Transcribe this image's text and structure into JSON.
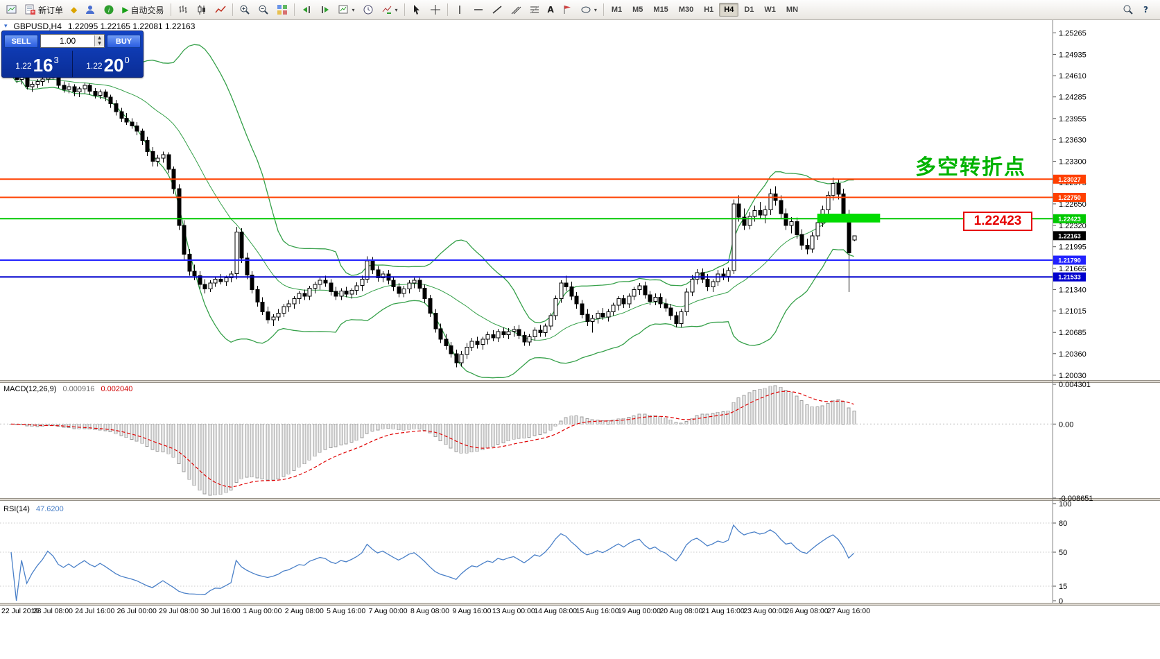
{
  "toolbar": {
    "new_order": "新订单",
    "autotrading": "自动交易",
    "timeframes": [
      "M1",
      "M5",
      "M15",
      "M30",
      "H1",
      "H4",
      "D1",
      "W1",
      "MN"
    ],
    "active_timeframe": "H4",
    "help_label": "?"
  },
  "chart_header": {
    "symbol": "GBPUSD,H4",
    "ohlc": "1.22095 1.22165 1.22081 1.22163"
  },
  "trade_panel": {
    "sell_label": "SELL",
    "buy_label": "BUY",
    "volume": "1.00",
    "sell_price": {
      "big": "1.22",
      "pips": "16",
      "sup": "3"
    },
    "buy_price": {
      "big": "1.22",
      "pips": "20",
      "sup": "0"
    }
  },
  "annotations": {
    "turning_point": "多空转折点",
    "turning_point_color": "#00b300",
    "price_box": "1.22423",
    "price_box_color": "#e60000"
  },
  "chart_data": {
    "type": "candlestick",
    "symbol": "GBPUSD",
    "timeframe": "H4",
    "price_axis": {
      "min": 1.19955,
      "max": 1.2547,
      "ticks": [
        "1.25265",
        "1.24935",
        "1.24610",
        "1.24285",
        "1.23955",
        "1.23630",
        "1.23300",
        "1.22975",
        "1.22650",
        "1.22320",
        "1.21995",
        "1.21665",
        "1.21340",
        "1.21015",
        "1.20685",
        "1.20360",
        "1.20030"
      ]
    },
    "time_labels": [
      {
        "i": 0,
        "label": "22 Jul 2019"
      },
      {
        "i": 8,
        "label": "23 Jul 08:00"
      },
      {
        "i": 16,
        "label": "24 Jul 16:00"
      },
      {
        "i": 24,
        "label": "26 Jul 00:00"
      },
      {
        "i": 32,
        "label": "29 Jul 08:00"
      },
      {
        "i": 40,
        "label": "30 Jul 16:00"
      },
      {
        "i": 48,
        "label": "1 Aug 00:00"
      },
      {
        "i": 56,
        "label": "2 Aug 08:00"
      },
      {
        "i": 64,
        "label": "5 Aug 16:00"
      },
      {
        "i": 72,
        "label": "7 Aug 00:00"
      },
      {
        "i": 80,
        "label": "8 Aug 08:00"
      },
      {
        "i": 88,
        "label": "9 Aug 16:00"
      },
      {
        "i": 96,
        "label": "13 Aug 00:00"
      },
      {
        "i": 104,
        "label": "14 Aug 08:00"
      },
      {
        "i": 112,
        "label": "15 Aug 16:00"
      },
      {
        "i": 120,
        "label": "19 Aug 00:00"
      },
      {
        "i": 128,
        "label": "20 Aug 08:00"
      },
      {
        "i": 136,
        "label": "21 Aug 16:00"
      },
      {
        "i": 144,
        "label": "23 Aug 00:00"
      },
      {
        "i": 152,
        "label": "26 Aug 08:00"
      },
      {
        "i": 160,
        "label": "27 Aug 16:00"
      }
    ],
    "candles": [
      [
        1.2468,
        1.2478,
        1.2458,
        1.2462
      ],
      [
        1.2462,
        1.2468,
        1.245,
        1.2455
      ],
      [
        1.2455,
        1.2465,
        1.2448,
        1.246
      ],
      [
        1.246,
        1.2463,
        1.244,
        1.2444
      ],
      [
        1.2444,
        1.2452,
        1.2436,
        1.2448
      ],
      [
        1.2448,
        1.2456,
        1.2442,
        1.2452
      ],
      [
        1.2452,
        1.246,
        1.2445,
        1.2456
      ],
      [
        1.2456,
        1.2466,
        1.245,
        1.2463
      ],
      [
        1.2463,
        1.2473,
        1.2455,
        1.2458
      ],
      [
        1.2458,
        1.2462,
        1.2442,
        1.2446
      ],
      [
        1.2446,
        1.2452,
        1.2435,
        1.244
      ],
      [
        1.244,
        1.245,
        1.2434,
        1.2444
      ],
      [
        1.2444,
        1.2448,
        1.243,
        1.2436
      ],
      [
        1.2436,
        1.2444,
        1.2428,
        1.2441
      ],
      [
        1.2441,
        1.245,
        1.2434,
        1.2446
      ],
      [
        1.2446,
        1.2449,
        1.2432,
        1.2437
      ],
      [
        1.2437,
        1.2442,
        1.2426,
        1.2431
      ],
      [
        1.2431,
        1.244,
        1.2425,
        1.2436
      ],
      [
        1.2436,
        1.244,
        1.2422,
        1.2428
      ],
      [
        1.2428,
        1.2432,
        1.2412,
        1.2418
      ],
      [
        1.2418,
        1.2424,
        1.24,
        1.2406
      ],
      [
        1.2406,
        1.2412,
        1.239,
        1.2396
      ],
      [
        1.2396,
        1.2404,
        1.2386,
        1.239
      ],
      [
        1.239,
        1.2396,
        1.238,
        1.2384
      ],
      [
        1.2384,
        1.239,
        1.237,
        1.2376
      ],
      [
        1.2376,
        1.238,
        1.2355,
        1.2362
      ],
      [
        1.2362,
        1.2368,
        1.2338,
        1.2345
      ],
      [
        1.2345,
        1.2352,
        1.2322,
        1.233
      ],
      [
        1.233,
        1.234,
        1.2322,
        1.2335
      ],
      [
        1.2335,
        1.2345,
        1.2328,
        1.234
      ],
      [
        1.234,
        1.2344,
        1.2312,
        1.2318
      ],
      [
        1.2318,
        1.2322,
        1.228,
        1.2288
      ],
      [
        1.2288,
        1.2295,
        1.2225,
        1.2232
      ],
      [
        1.2232,
        1.224,
        1.218,
        1.2188
      ],
      [
        1.2188,
        1.2196,
        1.2155,
        1.2162
      ],
      [
        1.2162,
        1.2172,
        1.2148,
        1.2155
      ],
      [
        1.2155,
        1.2162,
        1.2135,
        1.2142
      ],
      [
        1.2142,
        1.215,
        1.2128,
        1.2135
      ],
      [
        1.2135,
        1.2148,
        1.213,
        1.2144
      ],
      [
        1.2144,
        1.2154,
        1.2138,
        1.215
      ],
      [
        1.215,
        1.2158,
        1.2142,
        1.2146
      ],
      [
        1.2146,
        1.2155,
        1.214,
        1.2152
      ],
      [
        1.2152,
        1.2162,
        1.2145,
        1.2158
      ],
      [
        1.2158,
        1.223,
        1.215,
        1.2222
      ],
      [
        1.2222,
        1.2228,
        1.2175,
        1.2182
      ],
      [
        1.2182,
        1.219,
        1.215,
        1.2156
      ],
      [
        1.2156,
        1.2162,
        1.2128,
        1.2134
      ],
      [
        1.2134,
        1.214,
        1.2108,
        1.2115
      ],
      [
        1.2115,
        1.2122,
        1.2095,
        1.21
      ],
      [
        1.21,
        1.2108,
        1.2082,
        1.2088
      ],
      [
        1.2088,
        1.2096,
        1.2078,
        1.2092
      ],
      [
        1.2092,
        1.2104,
        1.2086,
        1.2098
      ],
      [
        1.2098,
        1.2112,
        1.2092,
        1.2108
      ],
      [
        1.2108,
        1.2118,
        1.21,
        1.2112
      ],
      [
        1.2112,
        1.2124,
        1.2105,
        1.212
      ],
      [
        1.212,
        1.2132,
        1.2112,
        1.2128
      ],
      [
        1.2128,
        1.2134,
        1.2118,
        1.2124
      ],
      [
        1.2124,
        1.214,
        1.2118,
        1.2136
      ],
      [
        1.2136,
        1.2146,
        1.2128,
        1.2142
      ],
      [
        1.2142,
        1.2152,
        1.2134,
        1.2148
      ],
      [
        1.2148,
        1.2155,
        1.2138,
        1.2144
      ],
      [
        1.2144,
        1.215,
        1.2125,
        1.2131
      ],
      [
        1.2131,
        1.2138,
        1.2118,
        1.2124
      ],
      [
        1.2124,
        1.2136,
        1.2118,
        1.2132
      ],
      [
        1.2132,
        1.2138,
        1.2122,
        1.2127
      ],
      [
        1.2127,
        1.2136,
        1.212,
        1.2133
      ],
      [
        1.2133,
        1.2145,
        1.2126,
        1.214
      ],
      [
        1.214,
        1.2155,
        1.2132,
        1.215
      ],
      [
        1.215,
        1.2185,
        1.2144,
        1.2178
      ],
      [
        1.2178,
        1.2184,
        1.2158,
        1.2164
      ],
      [
        1.2164,
        1.217,
        1.2146,
        1.2152
      ],
      [
        1.2152,
        1.2162,
        1.2145,
        1.2158
      ],
      [
        1.2158,
        1.2164,
        1.2142,
        1.2148
      ],
      [
        1.2148,
        1.2154,
        1.2132,
        1.2138
      ],
      [
        1.2138,
        1.2144,
        1.2122,
        1.2128
      ],
      [
        1.2128,
        1.214,
        1.2122,
        1.2135
      ],
      [
        1.2135,
        1.2148,
        1.2128,
        1.2144
      ],
      [
        1.2144,
        1.2152,
        1.2136,
        1.2148
      ],
      [
        1.2148,
        1.2152,
        1.213,
        1.2136
      ],
      [
        1.2136,
        1.2142,
        1.2114,
        1.212
      ],
      [
        1.212,
        1.2126,
        1.2092,
        1.2098
      ],
      [
        1.2098,
        1.2104,
        1.2068,
        1.2074
      ],
      [
        1.2074,
        1.2082,
        1.2052,
        1.2058
      ],
      [
        1.2058,
        1.2066,
        1.2042,
        1.2048
      ],
      [
        1.2048,
        1.2054,
        1.203,
        1.2036
      ],
      [
        1.2036,
        1.2042,
        1.2015,
        1.2022
      ],
      [
        1.2022,
        1.204,
        1.2016,
        1.2035
      ],
      [
        1.2035,
        1.2052,
        1.2028,
        1.2046
      ],
      [
        1.2046,
        1.206,
        1.204,
        1.2055
      ],
      [
        1.2055,
        1.2062,
        1.2044,
        1.205
      ],
      [
        1.205,
        1.2062,
        1.2042,
        1.2058
      ],
      [
        1.2058,
        1.207,
        1.205,
        1.2065
      ],
      [
        1.2065,
        1.2072,
        1.2055,
        1.206
      ],
      [
        1.206,
        1.2074,
        1.2054,
        1.207
      ],
      [
        1.207,
        1.2076,
        1.206,
        1.2065
      ],
      [
        1.2065,
        1.2075,
        1.2058,
        1.207
      ],
      [
        1.207,
        1.2078,
        1.2062,
        1.2073
      ],
      [
        1.2073,
        1.208,
        1.2058,
        1.2064
      ],
      [
        1.2064,
        1.207,
        1.2048,
        1.2054
      ],
      [
        1.2054,
        1.2066,
        1.2048,
        1.2062
      ],
      [
        1.2062,
        1.2076,
        1.2056,
        1.2072
      ],
      [
        1.2072,
        1.208,
        1.2062,
        1.2068
      ],
      [
        1.2068,
        1.2082,
        1.2062,
        1.2078
      ],
      [
        1.2078,
        1.2098,
        1.2072,
        1.2094
      ],
      [
        1.2094,
        1.2125,
        1.2088,
        1.212
      ],
      [
        1.212,
        1.2148,
        1.2114,
        1.2144
      ],
      [
        1.2144,
        1.2155,
        1.2132,
        1.2138
      ],
      [
        1.2138,
        1.2146,
        1.2118,
        1.2124
      ],
      [
        1.2124,
        1.213,
        1.2105,
        1.2112
      ],
      [
        1.2112,
        1.2118,
        1.209,
        1.2096
      ],
      [
        1.2096,
        1.2104,
        1.2078,
        1.2085
      ],
      [
        1.2085,
        1.2095,
        1.2068,
        1.209
      ],
      [
        1.209,
        1.2102,
        1.2082,
        1.2098
      ],
      [
        1.2098,
        1.2106,
        1.2088,
        1.2092
      ],
      [
        1.2092,
        1.2104,
        1.2085,
        1.21
      ],
      [
        1.21,
        1.2114,
        1.2094,
        1.211
      ],
      [
        1.211,
        1.2124,
        1.2102,
        1.212
      ],
      [
        1.212,
        1.2126,
        1.2106,
        1.2112
      ],
      [
        1.2112,
        1.2128,
        1.2106,
        1.2124
      ],
      [
        1.2124,
        1.2138,
        1.2118,
        1.2134
      ],
      [
        1.2134,
        1.2144,
        1.2126,
        1.214
      ],
      [
        1.214,
        1.2146,
        1.212,
        1.2126
      ],
      [
        1.2126,
        1.2132,
        1.211,
        1.2116
      ],
      [
        1.2116,
        1.2128,
        1.211,
        1.2122
      ],
      [
        1.2122,
        1.2128,
        1.2106,
        1.2112
      ],
      [
        1.2112,
        1.212,
        1.21,
        1.2106
      ],
      [
        1.2106,
        1.2112,
        1.2088,
        1.2094
      ],
      [
        1.2094,
        1.21,
        1.2076,
        1.2082
      ],
      [
        1.2082,
        1.2105,
        1.2076,
        1.21
      ],
      [
        1.21,
        1.2136,
        1.2094,
        1.213
      ],
      [
        1.213,
        1.2156,
        1.2124,
        1.215
      ],
      [
        1.215,
        1.2165,
        1.2142,
        1.216
      ],
      [
        1.216,
        1.2166,
        1.2144,
        1.215
      ],
      [
        1.215,
        1.2158,
        1.2132,
        1.2138
      ],
      [
        1.2138,
        1.215,
        1.213,
        1.2146
      ],
      [
        1.2146,
        1.2164,
        1.214,
        1.2158
      ],
      [
        1.2158,
        1.2166,
        1.2148,
        1.2154
      ],
      [
        1.2154,
        1.2168,
        1.2146,
        1.2163
      ],
      [
        1.2163,
        1.2272,
        1.2158,
        1.2265
      ],
      [
        1.2265,
        1.2278,
        1.2238,
        1.2245
      ],
      [
        1.2245,
        1.2258,
        1.2225,
        1.2232
      ],
      [
        1.2232,
        1.2252,
        1.2226,
        1.2246
      ],
      [
        1.2246,
        1.2262,
        1.2238,
        1.2255
      ],
      [
        1.2255,
        1.2268,
        1.2242,
        1.2248
      ],
      [
        1.2248,
        1.2262,
        1.2235,
        1.2256
      ],
      [
        1.2256,
        1.2288,
        1.2248,
        1.228
      ],
      [
        1.228,
        1.2292,
        1.2262,
        1.227
      ],
      [
        1.227,
        1.2278,
        1.2242,
        1.225
      ],
      [
        1.225,
        1.2258,
        1.2225,
        1.2232
      ],
      [
        1.2232,
        1.2245,
        1.222,
        1.2238
      ],
      [
        1.2238,
        1.2244,
        1.2212,
        1.2218
      ],
      [
        1.2218,
        1.2226,
        1.2195,
        1.2202
      ],
      [
        1.2202,
        1.2212,
        1.2188,
        1.2196
      ],
      [
        1.2196,
        1.2222,
        1.219,
        1.2216
      ],
      [
        1.2216,
        1.2242,
        1.221,
        1.2236
      ],
      [
        1.2236,
        1.2262,
        1.223,
        1.2256
      ],
      [
        1.2256,
        1.2284,
        1.2248,
        1.2278
      ],
      [
        1.2278,
        1.2305,
        1.227,
        1.2296
      ],
      [
        1.2296,
        1.2302,
        1.2272,
        1.228
      ],
      [
        1.228,
        1.2288,
        1.224,
        1.2248
      ],
      [
        1.2248,
        1.2256,
        1.213,
        1.219
      ],
      [
        1.22095,
        1.22165,
        1.22081,
        1.22163
      ]
    ],
    "bollinger": {
      "period": 20,
      "deviation": 2,
      "color": "#35a049"
    },
    "hlines": [
      {
        "price": 1.23027,
        "label": "1.23027",
        "color": "#ff4000"
      },
      {
        "price": 1.2275,
        "label": "1.22750",
        "color": "#ff4000"
      },
      {
        "price": 1.22423,
        "label": "1.22423",
        "color": "#00c800"
      },
      {
        "price": 1.2179,
        "label": "1.21790",
        "color": "#2222ff"
      },
      {
        "price": 1.21533,
        "label": "1.21533",
        "color": "#0000cd"
      }
    ],
    "current_price": {
      "value": 1.22163,
      "label": "1.22163",
      "tag_bg": "#000000"
    },
    "green_box": {
      "from_candle": 154,
      "to_candle": 166,
      "price_top": 1.225,
      "price_bottom": 1.22365,
      "color": "#00dc00"
    },
    "macd": {
      "label": "MACD(12,26,9)",
      "value_main": "0.000916",
      "value_signal": "0.002040",
      "fast": 12,
      "slow": 26,
      "signal_period": 9,
      "axis_labels": [
        "0.004301",
        "0.00",
        "-0.008651"
      ],
      "signal_color": "#e00000",
      "hist_fill": "#ececec",
      "hist_stroke": "#9c9c9c"
    },
    "rsi": {
      "label": "RSI(14)",
      "value": "47.6200",
      "period": 14,
      "color": "#4a80c8",
      "levels": [
        80,
        50,
        15
      ],
      "axis_labels": [
        "100",
        "80",
        "50",
        "15",
        "0"
      ]
    }
  }
}
